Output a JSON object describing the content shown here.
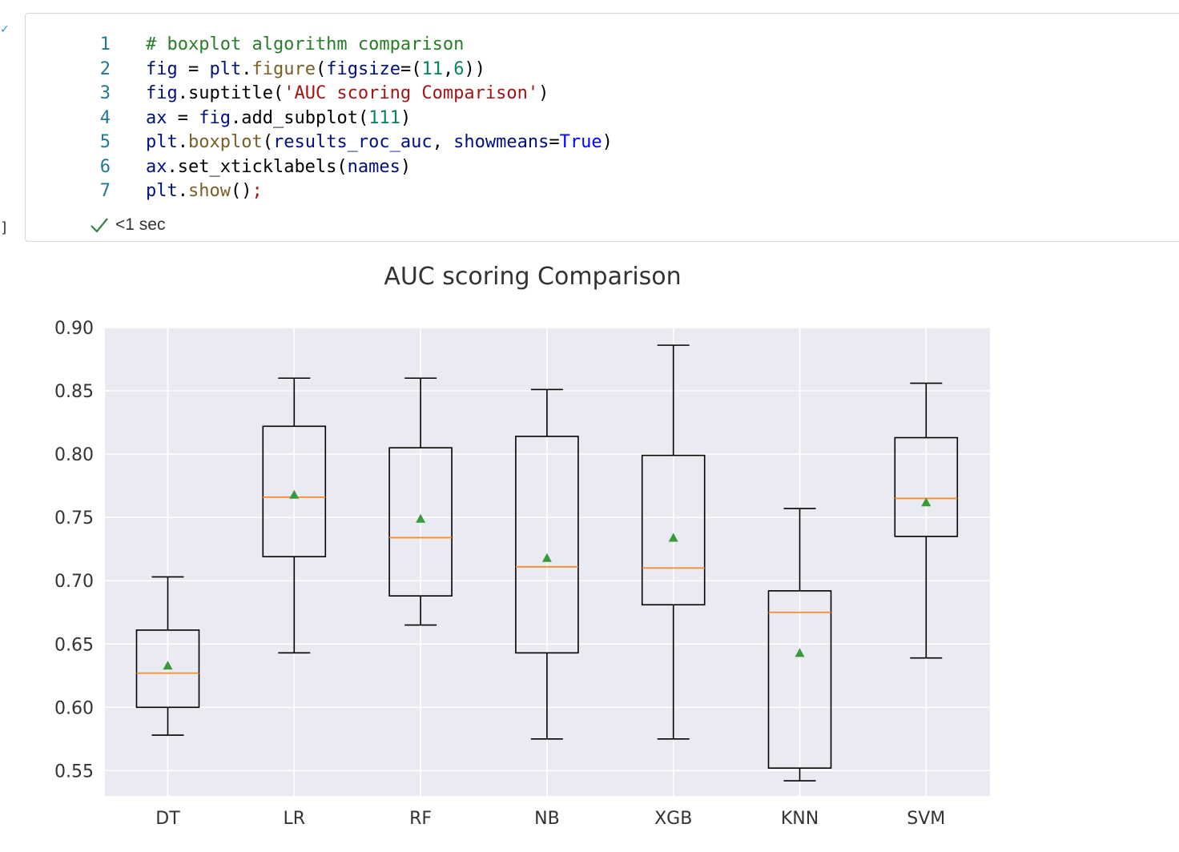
{
  "notebook": {
    "cell": {
      "code_lines": [
        {
          "number": "1",
          "tokens": [
            {
              "t": "# boxplot algorithm comparison",
              "c": "comment"
            }
          ]
        },
        {
          "number": "2",
          "tokens": [
            {
              "t": "fig",
              "c": "var"
            },
            {
              "t": " = ",
              "c": "punct"
            },
            {
              "t": "plt",
              "c": "var"
            },
            {
              "t": ".",
              "c": "punct"
            },
            {
              "t": "figure",
              "c": "func"
            },
            {
              "t": "(",
              "c": "punct"
            },
            {
              "t": "figsize",
              "c": "var"
            },
            {
              "t": "=(",
              "c": "punct"
            },
            {
              "t": "11",
              "c": "num"
            },
            {
              "t": ",",
              "c": "punct"
            },
            {
              "t": "6",
              "c": "num"
            },
            {
              "t": "))",
              "c": "punct"
            }
          ]
        },
        {
          "number": "3",
          "tokens": [
            {
              "t": "fig",
              "c": "var"
            },
            {
              "t": ".suptitle(",
              "c": "punct"
            },
            {
              "t": "'AUC scoring Comparison'",
              "c": "str"
            },
            {
              "t": ")",
              "c": "punct"
            }
          ]
        },
        {
          "number": "4",
          "tokens": [
            {
              "t": "ax",
              "c": "var"
            },
            {
              "t": " = ",
              "c": "punct"
            },
            {
              "t": "fig",
              "c": "var"
            },
            {
              "t": ".add_subplot(",
              "c": "punct"
            },
            {
              "t": "111",
              "c": "num"
            },
            {
              "t": ")",
              "c": "punct"
            }
          ]
        },
        {
          "number": "5",
          "tokens": [
            {
              "t": "plt",
              "c": "var"
            },
            {
              "t": ".",
              "c": "punct"
            },
            {
              "t": "boxplot",
              "c": "func"
            },
            {
              "t": "(",
              "c": "punct"
            },
            {
              "t": "results_roc_auc",
              "c": "var"
            },
            {
              "t": ", ",
              "c": "punct"
            },
            {
              "t": "showmeans",
              "c": "var"
            },
            {
              "t": "=",
              "c": "punct"
            },
            {
              "t": "True",
              "c": "kw"
            },
            {
              "t": ")",
              "c": "punct"
            }
          ]
        },
        {
          "number": "6",
          "tokens": [
            {
              "t": "ax",
              "c": "var"
            },
            {
              "t": ".set_xticklabels(",
              "c": "punct"
            },
            {
              "t": "names",
              "c": "var"
            },
            {
              "t": ")",
              "c": "punct"
            }
          ]
        },
        {
          "number": "7",
          "tokens": [
            {
              "t": "plt",
              "c": "var"
            },
            {
              "t": ".",
              "c": "punct"
            },
            {
              "t": "show",
              "c": "func"
            },
            {
              "t": "()",
              "c": "punct"
            },
            {
              "t": ";",
              "c": "semi"
            }
          ]
        }
      ],
      "status": {
        "icon": "check-icon",
        "text": "<1 sec",
        "color": "#2e8540"
      },
      "exec_marker": "]"
    }
  },
  "chart_data": {
    "type": "boxplot",
    "title": "AUC scoring Comparison",
    "xlabel": "",
    "ylabel": "",
    "ylim": [
      0.53,
      0.9
    ],
    "yticks": [
      0.55,
      0.6,
      0.65,
      0.7,
      0.75,
      0.8,
      0.85,
      0.9
    ],
    "ytick_labels": [
      "0.55",
      "0.60",
      "0.65",
      "0.70",
      "0.75",
      "0.80",
      "0.85",
      "0.90"
    ],
    "categories": [
      "DT",
      "LR",
      "RF",
      "NB",
      "XGB",
      "KNN",
      "SVM"
    ],
    "grid": true,
    "colors": {
      "background": "#eaeaf2",
      "grid": "#ffffff",
      "box": "#000000",
      "median": "#f28e2b",
      "mean": "#3a9a3a"
    },
    "boxes": [
      {
        "name": "DT",
        "whislo": 0.578,
        "q1": 0.6,
        "med": 0.627,
        "q3": 0.661,
        "whishi": 0.703,
        "mean": 0.633
      },
      {
        "name": "LR",
        "whislo": 0.643,
        "q1": 0.719,
        "med": 0.766,
        "q3": 0.822,
        "whishi": 0.86,
        "mean": 0.768
      },
      {
        "name": "RF",
        "whislo": 0.665,
        "q1": 0.688,
        "med": 0.734,
        "q3": 0.805,
        "whishi": 0.86,
        "mean": 0.749
      },
      {
        "name": "NB",
        "whislo": 0.575,
        "q1": 0.643,
        "med": 0.711,
        "q3": 0.814,
        "whishi": 0.851,
        "mean": 0.718
      },
      {
        "name": "XGB",
        "whislo": 0.575,
        "q1": 0.681,
        "med": 0.71,
        "q3": 0.799,
        "whishi": 0.886,
        "mean": 0.734
      },
      {
        "name": "KNN",
        "whislo": 0.542,
        "q1": 0.552,
        "med": 0.675,
        "q3": 0.692,
        "whishi": 0.757,
        "mean": 0.643
      },
      {
        "name": "SVM",
        "whislo": 0.639,
        "q1": 0.735,
        "med": 0.765,
        "q3": 0.813,
        "whishi": 0.856,
        "mean": 0.762
      }
    ]
  }
}
